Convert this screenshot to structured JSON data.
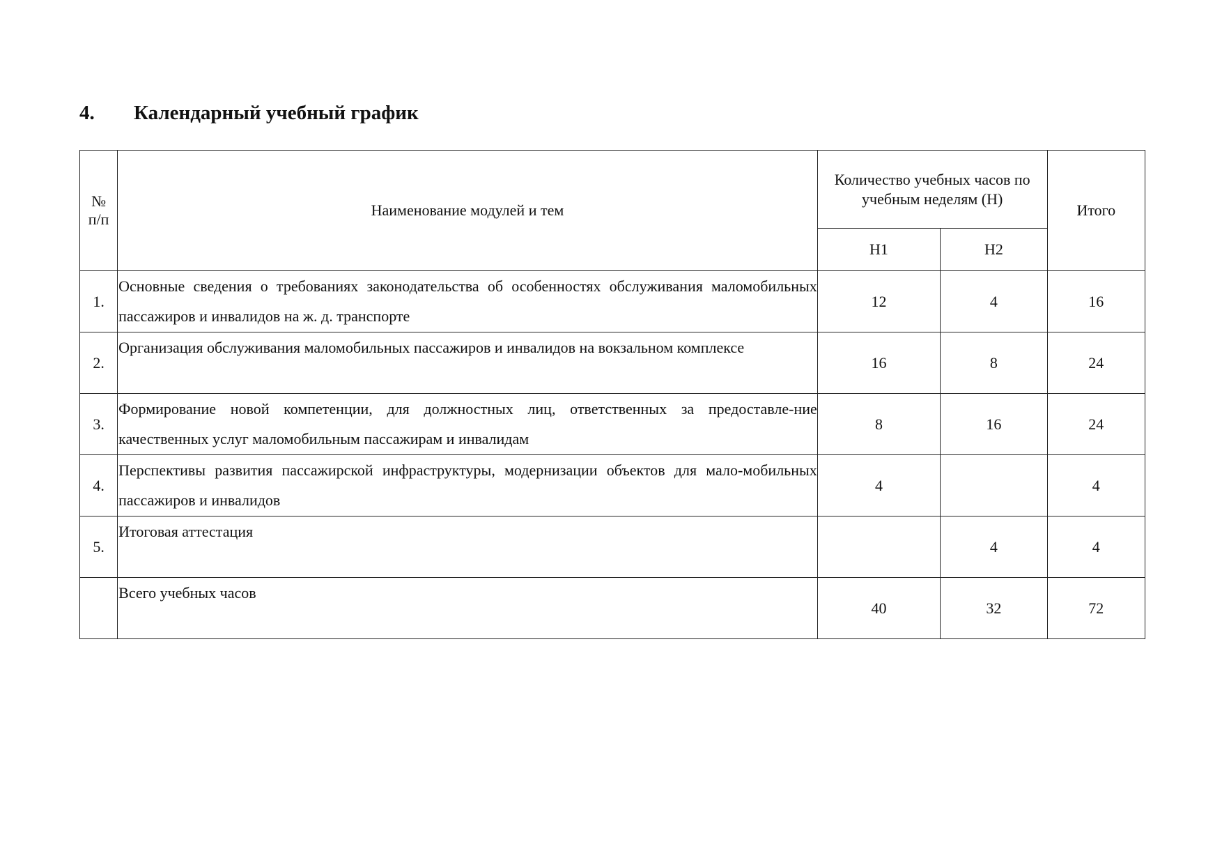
{
  "heading": {
    "number": "4.",
    "title": "Календарный учебный график"
  },
  "table": {
    "headers": {
      "number": "№ п/п",
      "name": "Наименование модулей и тем",
      "hours_group": "Количество учебных часов по учебным неделям (Н)",
      "week1": "Н1",
      "week2": "Н2",
      "total": "Итого"
    },
    "rows": [
      {
        "number": "1.",
        "name": "Основные сведения о требованиях законодательства об особенностях обслуживания маломобильных пассажиров и инвалидов на ж. д. транспорте",
        "h1": "12",
        "h2": "4",
        "total": "16"
      },
      {
        "number": "2.",
        "name": "Организация обслуживания маломобильных пассажиров и инвалидов на вокзальном комплексе",
        "h1": "16",
        "h2": "8",
        "total": "24"
      },
      {
        "number": "3.",
        "name": "Формирование новой компетенции, для должностных лиц, ответственных за предоставле-ние качественных услуг маломобильным пассажирам и инвалидам",
        "h1": "8",
        "h2": "16",
        "total": "24"
      },
      {
        "number": "4.",
        "name": "Перспективы развития пассажирской инфраструктуры, модернизации объектов для мало-мобильных пассажиров и инвалидов",
        "h1": "4",
        "h2": "",
        "total": "4"
      },
      {
        "number": "5.",
        "name": "Итоговая аттестация",
        "h1": "",
        "h2": "4",
        "total": "4"
      },
      {
        "number": "",
        "name": "Всего учебных часов",
        "h1": "40",
        "h2": "32",
        "total": "72"
      }
    ]
  }
}
